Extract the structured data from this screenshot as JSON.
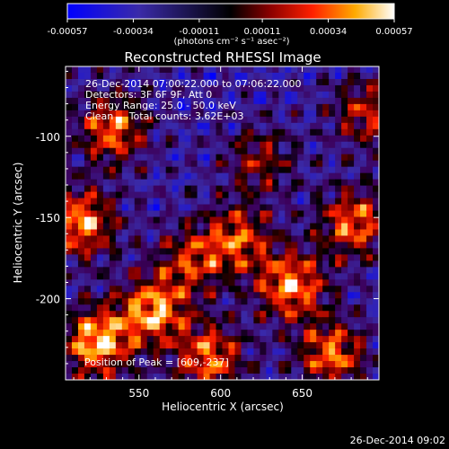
{
  "chart_data": {
    "type": "heatmap",
    "title": "Reconstructed RHESSI Image",
    "xlabel": "Heliocentric X (arcsec)",
    "ylabel": "Heliocentric Y (arcsec)",
    "xlim": [
      505,
      697
    ],
    "ylim": [
      -250,
      -57
    ],
    "xticks": [
      550,
      600,
      650
    ],
    "yticks": [
      -100,
      -150,
      -200
    ],
    "colorbar": {
      "colormap": "rhessi-hot (blue-black-red-yellow-white)",
      "range": [
        -0.00057,
        0.00057
      ],
      "tick_labels": [
        "-0.00057",
        "-0.00034",
        "-0.00011",
        "0.00011",
        "0.00034",
        "0.00057"
      ],
      "units_label": "(photons cm⁻² s⁻¹ asec⁻²)"
    },
    "annotations": {
      "time_range": "26-Dec-2014 07:00:22.000 to 07:06:22.000",
      "detectors": "Detectors: 3F 6F 9F, Att 0",
      "energy_range": "Energy Range: 25.0 - 50.0 keV",
      "method": "Clean     Total counts: 3.62E+03",
      "peak": "Position of Peak = [609,-237]"
    },
    "timestamp": "26-Dec-2014 09:02",
    "grid": false,
    "legend": "none"
  }
}
